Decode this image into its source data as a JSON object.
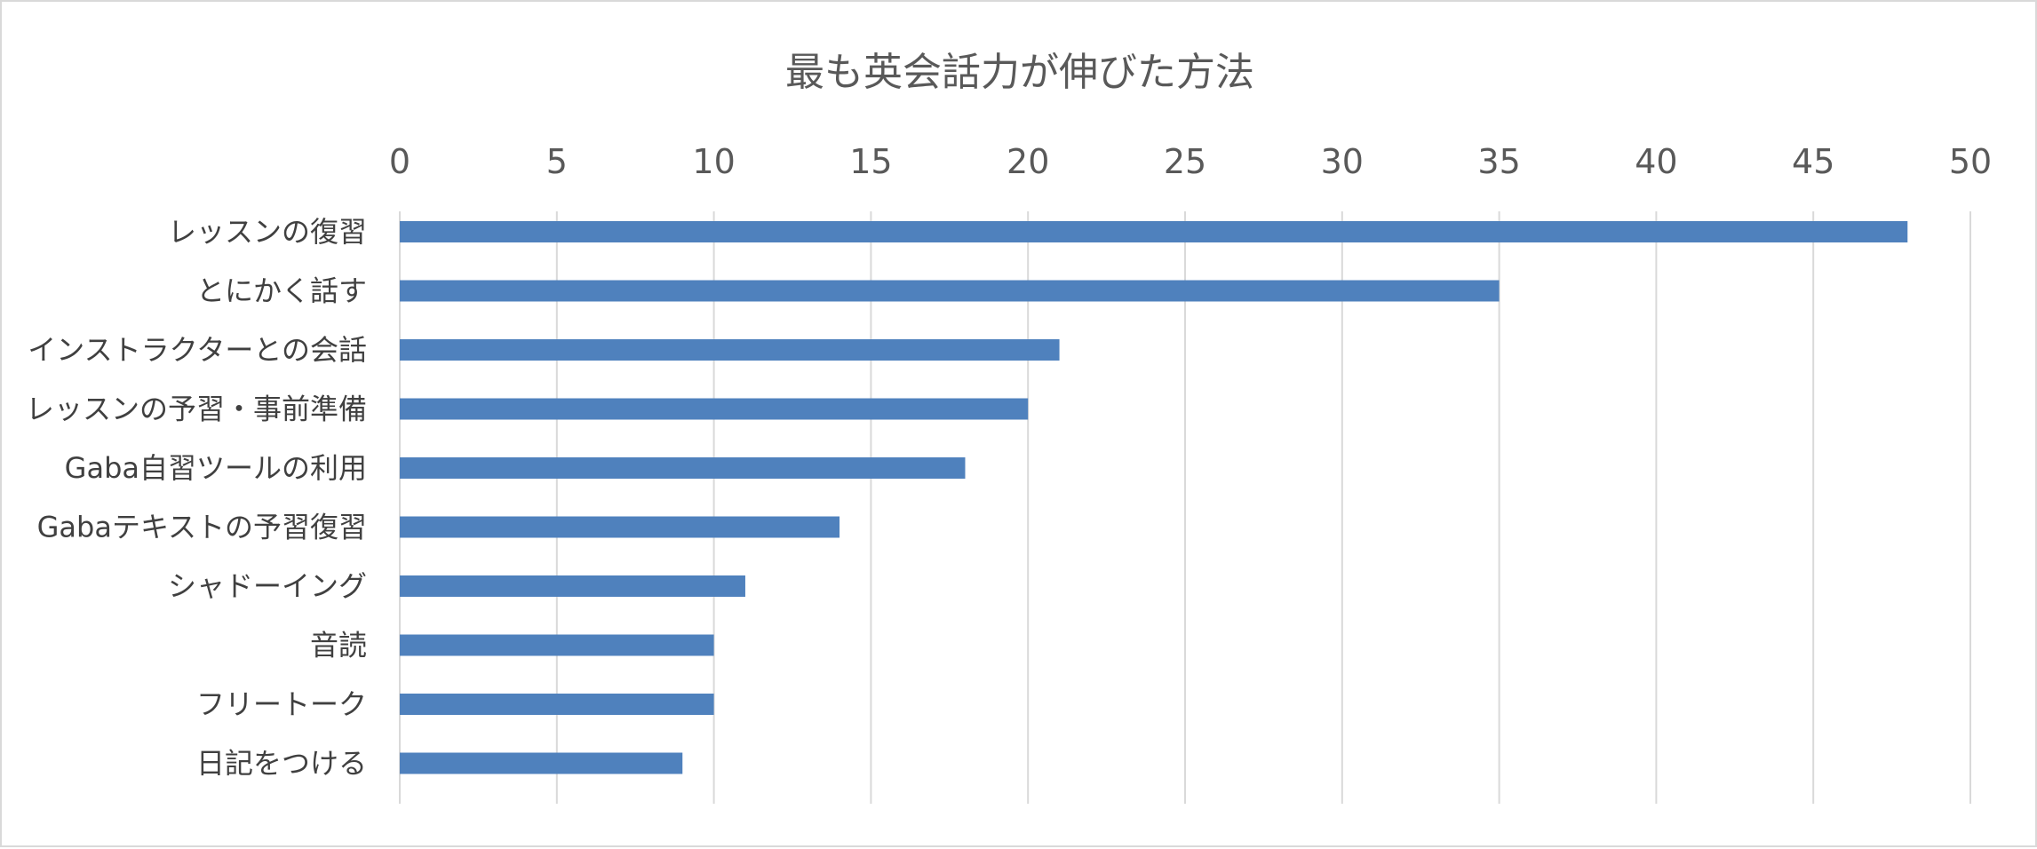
{
  "chart_data": {
    "type": "bar",
    "orientation": "horizontal",
    "title": "最も英会話力が伸びた方法",
    "xlabel": "",
    "ylabel": "",
    "xlim": [
      0,
      50
    ],
    "x_ticks": [
      "0",
      "5",
      "10",
      "15",
      "20",
      "25",
      "30",
      "35",
      "40",
      "45",
      "50"
    ],
    "x_axis_position": "top",
    "grid": true,
    "legend": "none",
    "categories": [
      "レッスンの復習",
      "とにかく話す",
      "インストラクターとの会話",
      "レッスンの予習・事前準備",
      "Gaba自習ツールの利用",
      "Gabaテキストの予習復習",
      "シャドーイング",
      "音読",
      "フリートーク",
      "日記をつける"
    ],
    "values": [
      48,
      35,
      21,
      20,
      18,
      14,
      11,
      10,
      10,
      9
    ],
    "bar_color": "#4f81bd"
  }
}
